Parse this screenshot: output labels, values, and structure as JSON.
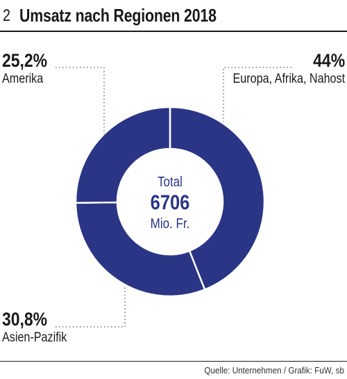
{
  "header": {
    "figure_number": "2",
    "title": "Umsatz nach Regionen 2018"
  },
  "chart_data": {
    "type": "pie",
    "variant": "donut",
    "title": "Umsatz nach Regionen 2018",
    "center": {
      "label": "Total",
      "value": "6706",
      "unit": "Mio. Fr."
    },
    "total": 6706,
    "slices": [
      {
        "name": "Europa, Afrika, Nahost",
        "value": 44,
        "label": "44%"
      },
      {
        "name": "Asien-Pazifik",
        "value": 30.8,
        "label": "30,8%"
      },
      {
        "name": "Amerika",
        "value": 25.2,
        "label": "25,2%"
      }
    ],
    "colors": {
      "slice": "#2b3585",
      "separator": "#ffffff",
      "leader": "#555555"
    }
  },
  "footer": {
    "source": "Quelle: Unternehmen / Grafik: FuW, sb"
  }
}
